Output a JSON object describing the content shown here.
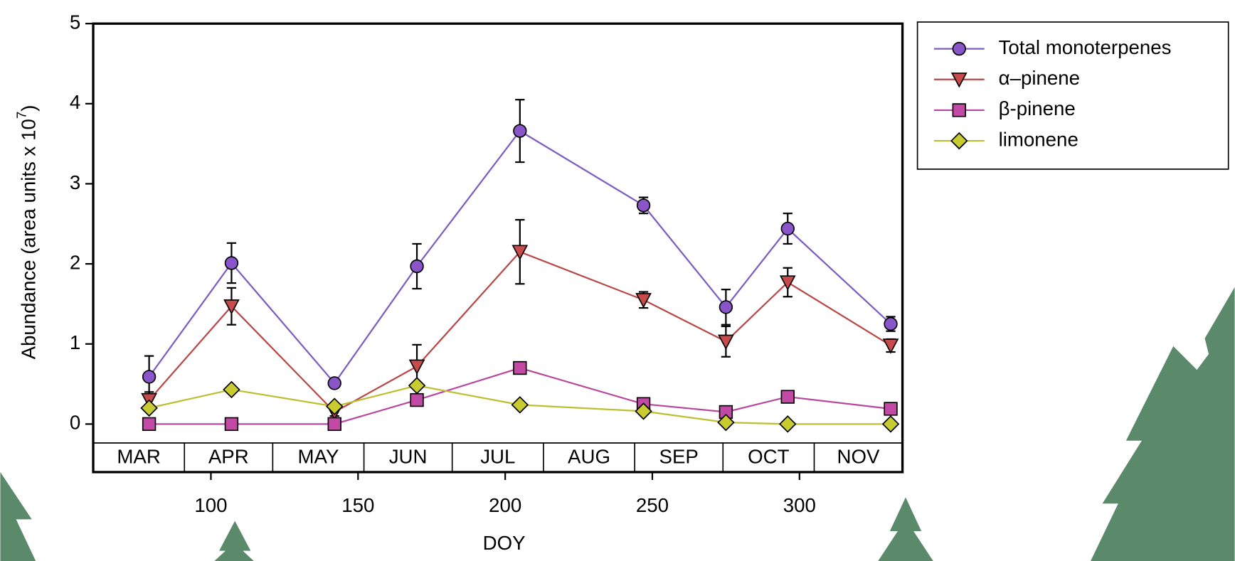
{
  "chart_data": {
    "type": "line",
    "y_label": {
      "text": "Abundance (area units x 10",
      "exponent": "7",
      "close": ")"
    },
    "x_label": "DOY",
    "xlim": [
      60,
      335
    ],
    "xticks": [
      100,
      150,
      200,
      250,
      300
    ],
    "ylim": [
      -0.6,
      5
    ],
    "yticks": [
      0,
      1,
      2,
      3,
      4,
      5
    ],
    "months": {
      "labels": [
        "MAR",
        "APR",
        "MAY",
        "JUN",
        "JUL",
        "AUG",
        "SEP",
        "OCT",
        "NOV"
      ],
      "edges": [
        60,
        91,
        121,
        152,
        182,
        213,
        244,
        274,
        305,
        335
      ]
    },
    "x": [
      79,
      107,
      142,
      170,
      205,
      247,
      275,
      296,
      331
    ],
    "series": [
      {
        "name": "Total monoterpenes",
        "color": "#7b5cc0",
        "fill": "#8a55c8",
        "marker": "circle",
        "values": [
          0.59,
          2.01,
          0.51,
          1.97,
          3.66,
          2.73,
          1.46,
          2.44,
          1.25
        ],
        "errors": [
          0.26,
          0.25,
          0.03,
          0.28,
          0.39,
          0.1,
          0.22,
          0.19,
          0.09
        ]
      },
      {
        "name": "α–pinene",
        "color": "#b84848",
        "fill": "#c84b4b",
        "marker": "triangle",
        "values": [
          0.3,
          1.47,
          0.15,
          0.72,
          2.15,
          1.55,
          1.03,
          1.77,
          0.98
        ],
        "errors": [
          0.1,
          0.23,
          0.05,
          0.27,
          0.4,
          0.1,
          0.19,
          0.18,
          0.08
        ]
      },
      {
        "name": "β-pinene",
        "color": "#b8489e",
        "fill": "#c24aa6",
        "marker": "square",
        "values": [
          0,
          0,
          0,
          0.3,
          0.7,
          0.25,
          0.15,
          0.34,
          0.19
        ]
      },
      {
        "name": "limonene",
        "color": "#bcc030",
        "fill": "#c8cc30",
        "marker": "diamond",
        "values": [
          0.2,
          0.43,
          0.22,
          0.48,
          0.24,
          0.16,
          0.02,
          0,
          0
        ]
      }
    ]
  }
}
